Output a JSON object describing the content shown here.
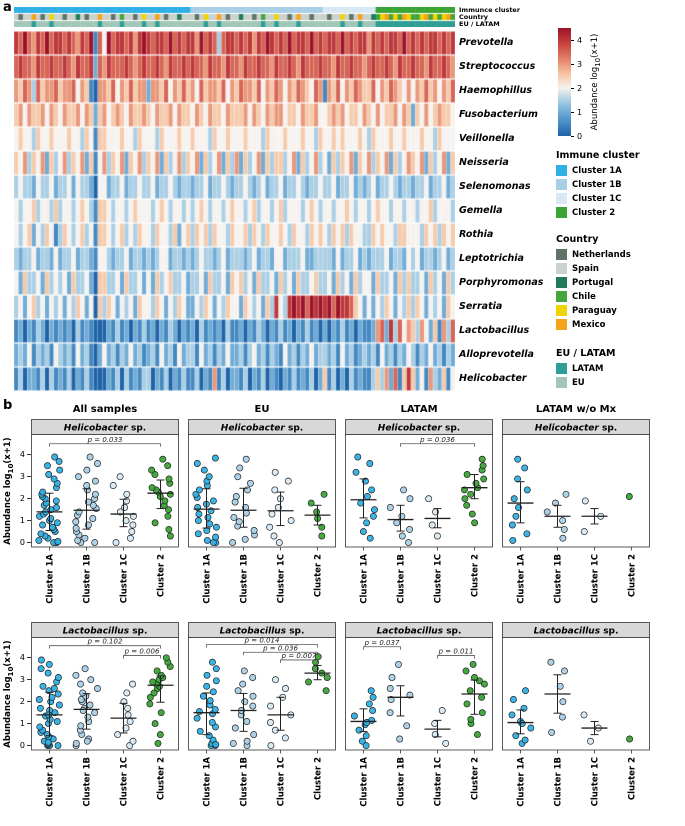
{
  "figure": {
    "panel_a_label": "a",
    "panel_b_label": "b"
  },
  "labels": {
    "abundance_pre": "Abundance log",
    "abundance_sub": "10",
    "abundance_post": "(x+1)"
  },
  "chart_data": [
    {
      "type": "heatmap",
      "annotation_labels": [
        "Immunce cluster",
        "Country",
        "EU / LATAM"
      ],
      "rows": [
        "Prevotella",
        "Streptococcus",
        "Haemophillus",
        "Fusobacterium",
        "Veillonella",
        "Neisseria",
        "Selenomonas",
        "Gemella",
        "Rothia",
        "Leptotrichia",
        "Porphyromonas",
        "Serratia",
        "Lactobacillus",
        "Alloprevotella",
        "Helicobacter"
      ],
      "value_scale": 0.5,
      "value_range": [
        0,
        4.5
      ],
      "colorbar_ticks": [
        4,
        3,
        2,
        1,
        0
      ],
      "cluster_track": "AAAAAAAAAAAAAAAAAAAAAAAAAAAAAAAAAAAAAAAABBBBBBBBBBBBBBBBBBBBBBBBBBBBBBCCCCCCCCCCCC222222222222222222",
      "country_track": "SNSSMSNSYSSNSSPSNSSMSSNSCSSNSYSSMSNSSPSSSNSYSSMSNSSPSSNSCSSYSSNSMSSNSSSNSSYSNSMSSPCYMCYCMYCCYMCYCYMC",
      "country_region": {
        "N": "E",
        "S": "E",
        "P": "E",
        "C": "L",
        "Y": "L",
        "M": "L"
      },
      "cluster_colors": {
        "A": "#2fb0e6",
        "B": "#a9cfe6",
        "C": "#d8e9f4",
        "2": "#3aa535"
      },
      "country_colors": {
        "N": "#5f7265",
        "S": "#cbd2cb",
        "P": "#1f7a60",
        "C": "#44a63c",
        "Y": "#f0d400",
        "M": "#f5a21b"
      },
      "region_colors": {
        "L": "#2f9e96",
        "E": "#a2c7b8"
      },
      "scale_stops": [
        [
          0,
          "#1f63a8"
        ],
        [
          0.8,
          "#5a9ed0"
        ],
        [
          1.5,
          "#abcfe4"
        ],
        [
          2,
          "#f5f2ef"
        ],
        [
          2.6,
          "#f6c3a0"
        ],
        [
          3.2,
          "#e3826a"
        ],
        [
          3.8,
          "#c94741"
        ],
        [
          4.5,
          "#9e1228"
        ]
      ],
      "values": [
        "8797687978878768791749788786898788797878869787378878786879878797887978788797878868787887978787887878",
        "7877687787787687782768777876787787687787877687768776877877687787687778776877877678778768778776877876",
        "6576375667566746510665746575662665746575647566574657665746576465765476165746576557465765464657564657",
        "5646556465465564652564565465565465564655465465546555646546566455465564456564554654645564652546456554",
        "4544354454445443541554445443544435444544544435445444544435444544454435445454445435444544544454435444",
        "5463546253463546251463546254635462534635462534625362534625355346253463425354625463546253465462534625",
        "3433243342334243320442334233433423343233233423343233432342334233432334334233423234233432332334233423",
        "4344534435344345431554344345444345434434345434434544345344345344434543443445434434544344344344534443",
        "4345243541354345341554345343544354435245354535443544535435445435443545435453544335454435544435453545",
        "3233423324233423321443233423323234423323234332342333234233244233342233332423342323334233243423323423",
        "4253342534342533420553342533424253453342334253342545342533425342533453342534253442533425353342534253",
        "3424534243424354240535424342544354243542243542435442543425384389897989897988754242435424353542434254",
        "1202132021212031210002131202131202132021203121203112021320213120213120202131202112672837465364251637",
        "2324132314323142310242313242312314231423314231324223134231321423132423323142312323142313243132423132",
        "1302213031213021310002130312133021302131130216130221302130210213121302513020312113536271585241632514"
      ]
    },
    {
      "type": "scatter",
      "col_headers": [
        "All samples",
        "EU",
        "LATAM",
        "LATAM w/o Mx"
      ],
      "group_labels": [
        "Cluster 1A",
        "Cluster 1B",
        "Cluster 1C",
        "Cluster 2"
      ],
      "group_keys": [
        "A",
        "B",
        "C",
        "2"
      ],
      "yticks": [
        0,
        1,
        2,
        3,
        4
      ],
      "ylim": [
        0,
        4
      ],
      "rows": [
        {
          "genus": "Helicobacter",
          "suffix": " sp.",
          "plots": [
            {
              "points": {
                "A": [
                  0,
                  0,
                  0,
                  0.05,
                  0.1,
                  0.2,
                  0.3,
                  0.4,
                  0.5,
                  0.6,
                  0.7,
                  0.8,
                  0.9,
                  1.0,
                  1.1,
                  1.2,
                  1.3,
                  1.4,
                  1.5,
                  1.6,
                  1.7,
                  1.8,
                  1.9,
                  2.0,
                  2.1,
                  2.2,
                  2.3,
                  2.5,
                  2.7,
                  2.9,
                  3.1,
                  3.3,
                  3.5,
                  3.7,
                  3.9
                ],
                "B": [
                  0,
                  0,
                  0.1,
                  0.2,
                  0.35,
                  0.5,
                  0.65,
                  0.8,
                  0.95,
                  1.1,
                  1.25,
                  1.4,
                  1.55,
                  1.7,
                  1.85,
                  2.0,
                  2.2,
                  2.4,
                  2.6,
                  2.8,
                  3.0,
                  3.3,
                  3.6,
                  3.9
                ],
                "C": [
                  0,
                  0.2,
                  0.5,
                  0.8,
                  1.0,
                  1.2,
                  1.4,
                  1.6,
                  1.9,
                  2.2,
                  2.6,
                  3.0
                ],
                "2": [
                  0.3,
                  0.6,
                  0.9,
                  1.2,
                  1.5,
                  1.7,
                  1.9,
                  2.1,
                  2.2,
                  2.3,
                  2.4,
                  2.5,
                  2.7,
                  2.9,
                  3.1,
                  3.3,
                  3.5,
                  3.8
                ]
              },
              "brackets": [
                {
                  "from": 0,
                  "to": 3,
                  "y": 4.5,
                  "label": "p = 0.033"
                }
              ]
            },
            {
              "points": {
                "A": [
                  0,
                  0,
                  0.1,
                  0.25,
                  0.4,
                  0.55,
                  0.7,
                  0.85,
                  1.0,
                  1.15,
                  1.3,
                  1.45,
                  1.6,
                  1.75,
                  1.9,
                  2.05,
                  2.2,
                  2.4,
                  2.6,
                  2.8,
                  3.0,
                  3.3,
                  3.6,
                  3.85
                ],
                "B": [
                  0,
                  0.15,
                  0.35,
                  0.55,
                  0.75,
                  0.95,
                  1.15,
                  1.35,
                  1.6,
                  1.85,
                  2.1,
                  2.4,
                  2.7,
                  3.0,
                  3.4,
                  3.8
                ],
                "C": [
                  0,
                  0.3,
                  0.7,
                  1.0,
                  1.3,
                  1.6,
                  2.0,
                  2.4,
                  2.8,
                  3.2
                ],
                "2": [
                  0.3,
                  0.7,
                  1.1,
                  1.4,
                  1.8,
                  2.2
                ]
              },
              "brackets": []
            },
            {
              "points": {
                "A": [
                  0.2,
                  0.5,
                  0.9,
                  1.2,
                  1.5,
                  1.8,
                  2.1,
                  2.4,
                  2.8,
                  3.2,
                  3.6,
                  3.9
                ],
                "B": [
                  0,
                  0.3,
                  0.6,
                  0.9,
                  1.2,
                  1.6,
                  2.0,
                  2.4
                ],
                "C": [
                  0.3,
                  0.8,
                  1.4,
                  2.0
                ],
                "2": [
                  0.9,
                  1.3,
                  1.7,
                  2.0,
                  2.2,
                  2.4,
                  2.5,
                  2.7,
                  2.9,
                  3.1,
                  3.3,
                  3.5,
                  3.8
                ]
              },
              "brackets": [
                {
                  "from": 1,
                  "to": 3,
                  "y": 4.5,
                  "label": "p = 0.036"
                }
              ]
            },
            {
              "points": {
                "A": [
                  0.1,
                  0.4,
                  0.8,
                  1.2,
                  1.6,
                  2.0,
                  2.4,
                  2.9,
                  3.4,
                  3.8
                ],
                "B": [
                  0.2,
                  0.6,
                  1.0,
                  1.4,
                  1.8,
                  2.2
                ],
                "C": [
                  0.5,
                  1.2,
                  1.9
                ],
                "2": [
                  2.1
                ]
              },
              "brackets": []
            }
          ]
        },
        {
          "genus": "Lactobacillus",
          "suffix": " sp.",
          "plots": [
            {
              "points": {
                "A": [
                  0,
                  0,
                  0,
                  0.05,
                  0.1,
                  0.2,
                  0.3,
                  0.4,
                  0.5,
                  0.6,
                  0.7,
                  0.85,
                  1.0,
                  1.1,
                  1.2,
                  1.35,
                  1.5,
                  1.6,
                  1.7,
                  1.85,
                  2.0,
                  2.1,
                  2.2,
                  2.35,
                  2.5,
                  2.7,
                  2.9,
                  3.1,
                  3.3,
                  3.5,
                  3.7,
                  3.9,
                  0.15,
                  1.4,
                  2.6
                ],
                "B": [
                  0,
                  0.1,
                  0.3,
                  0.5,
                  0.7,
                  0.9,
                  1.1,
                  1.3,
                  1.5,
                  1.7,
                  1.85,
                  2.0,
                  2.1,
                  2.25,
                  2.4,
                  2.6,
                  2.8,
                  3.0,
                  3.2,
                  3.5,
                  0.2,
                  1.6
                ],
                "C": [
                  0,
                  0.2,
                  0.5,
                  0.8,
                  1.1,
                  1.4,
                  1.7,
                  2.0,
                  2.4,
                  2.8
                ],
                "2": [
                  0.1,
                  0.5,
                  1.0,
                  1.5,
                  1.9,
                  2.2,
                  2.4,
                  2.6,
                  2.7,
                  2.8,
                  2.9,
                  3.0,
                  3.1,
                  3.2,
                  3.4,
                  3.6,
                  3.8,
                  4.0
                ]
              },
              "brackets": [
                {
                  "from": 0,
                  "to": 3,
                  "y": 4.55,
                  "label": "p = 0.102"
                },
                {
                  "from": 2,
                  "to": 3,
                  "y": 4.1,
                  "label": "p = 0.006"
                }
              ]
            },
            {
              "points": {
                "A": [
                  0,
                  0,
                  0.1,
                  0.25,
                  0.45,
                  0.65,
                  0.85,
                  1.05,
                  1.25,
                  1.45,
                  1.65,
                  1.85,
                  2.05,
                  2.25,
                  2.45,
                  2.7,
                  2.95,
                  3.2,
                  3.5,
                  3.8,
                  0.05,
                  1.55
                ],
                "B": [
                  0,
                  0.2,
                  0.5,
                  0.8,
                  1.1,
                  1.4,
                  1.6,
                  1.8,
                  2.0,
                  2.25,
                  2.5,
                  2.8,
                  3.1,
                  3.4,
                  0.1
                ],
                "C": [
                  0,
                  0.35,
                  0.7,
                  1.05,
                  1.4,
                  1.8,
                  2.2,
                  2.6,
                  3.0
                ],
                "2": [
                  2.5,
                  2.9,
                  3.1,
                  3.3,
                  3.5,
                  3.8,
                  4.05
                ]
              },
              "brackets": [
                {
                  "from": 0,
                  "to": 3,
                  "y": 4.6,
                  "label": "p = 0.014"
                },
                {
                  "from": 1,
                  "to": 3,
                  "y": 4.25,
                  "label": "p = 0.036"
                },
                {
                  "from": 2,
                  "to": 3,
                  "y": 3.9,
                  "label": "p = 0.007"
                }
              ]
            },
            {
              "points": {
                "A": [
                  0,
                  0.2,
                  0.45,
                  0.7,
                  0.95,
                  1.15,
                  1.35,
                  1.6,
                  1.9,
                  2.2,
                  2.5,
                  1.05
                ],
                "B": [
                  0.3,
                  0.9,
                  1.5,
                  2.1,
                  2.6,
                  3.1,
                  3.7,
                  2.3
                ],
                "C": [
                  0.1,
                  0.5,
                  1.0,
                  1.6
                ],
                "2": [
                  0.5,
                  1.0,
                  1.5,
                  1.9,
                  2.2,
                  2.5,
                  2.8,
                  3.1,
                  3.4,
                  3.7,
                  1.2,
                  2.95
                ]
              },
              "brackets": [
                {
                  "from": 0,
                  "to": 1,
                  "y": 4.5,
                  "label": "p = 0.037"
                },
                {
                  "from": 2,
                  "to": 3,
                  "y": 4.1,
                  "label": "p = 0.011"
                }
              ]
            },
            {
              "points": {
                "A": [
                  0.1,
                  0.45,
                  0.8,
                  1.1,
                  1.4,
                  1.7,
                  2.1,
                  2.5,
                  0.25,
                  1.0
                ],
                "B": [
                  0.6,
                  1.3,
                  2.0,
                  2.7,
                  3.4,
                  3.8
                ],
                "C": [
                  0.2,
                  0.8,
                  1.4
                ],
                "2": [
                  0.3
                ]
              },
              "brackets": []
            }
          ]
        }
      ]
    }
  ],
  "legends": {
    "sections": [
      {
        "title": "Immune cluster",
        "entries": [
          {
            "label": "Cluster 1A",
            "color": "#2fb0e6"
          },
          {
            "label": "Cluster 1B",
            "color": "#a9cfe6"
          },
          {
            "label": "Cluster 1C",
            "color": "#d8e9f4"
          },
          {
            "label": "Cluster 2",
            "color": "#3aa535"
          }
        ]
      },
      {
        "title": "Country",
        "entries": [
          {
            "label": "Netherlands",
            "color": "#5f7265"
          },
          {
            "label": "Spain",
            "color": "#cbd2cb"
          },
          {
            "label": "Portugal",
            "color": "#1f7a60"
          },
          {
            "label": "Chile",
            "color": "#44a63c"
          },
          {
            "label": "Paraguay",
            "color": "#f0d400"
          },
          {
            "label": "Mexico",
            "color": "#f5a21b"
          }
        ]
      },
      {
        "title": "EU / LATAM",
        "entries": [
          {
            "label": "LATAM",
            "color": "#2f9e96"
          },
          {
            "label": "EU",
            "color": "#a2c7b8"
          }
        ]
      }
    ]
  }
}
